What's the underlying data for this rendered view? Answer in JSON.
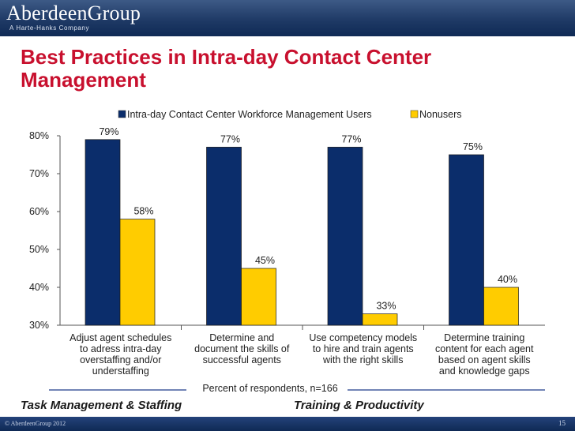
{
  "header": {
    "logo": "AberdeenGroup",
    "logo_sub": "A Harte-Hanks Company"
  },
  "title": "Best Practices in Intra-day Contact Center Management",
  "footer": {
    "left_label": "Task Management & Staffing",
    "right_label": "Training & Productivity",
    "copyright": "© AberdeenGroup 2012",
    "page_number": "15"
  },
  "chart_data": {
    "type": "bar",
    "title": "Best Practices in Intra-day Contact Center Management",
    "xlabel": "Percent of respondents, n=166",
    "ylabel": "",
    "ylim": [
      30,
      80
    ],
    "yticks": [
      "30%",
      "40%",
      "50%",
      "60%",
      "70%",
      "80%"
    ],
    "grid": false,
    "legend": "top",
    "categories": [
      [
        "Adjust agent schedules",
        "to adress intra-day",
        "overstaffing and/or",
        "understaffing"
      ],
      [
        "Determine and",
        "document the skills of",
        "successful agents"
      ],
      [
        "Use competency models",
        "to hire and train agents",
        "with the right skills"
      ],
      [
        "Determine training",
        "content for each agent",
        "based on agent skills",
        "and knowledge gaps"
      ]
    ],
    "series": [
      {
        "name": "Intra-day Contact Center Workforce Management Users",
        "values": [
          79,
          77,
          77,
          75
        ],
        "labels": [
          "79%",
          "77%",
          "77%",
          "75%"
        ],
        "color": "#0b2d6b"
      },
      {
        "name": "Nonusers",
        "values": [
          58,
          45,
          33,
          40
        ],
        "labels": [
          "58%",
          "45%",
          "33%",
          "40%"
        ],
        "color": "#ffcc00"
      }
    ]
  }
}
